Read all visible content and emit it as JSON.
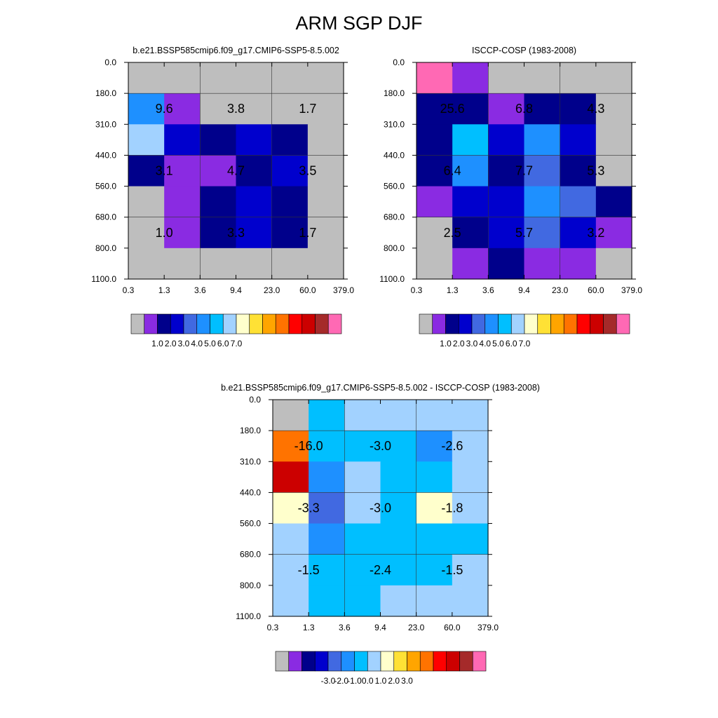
{
  "title": "ARM SGP DJF",
  "colors": {
    "gray": "#BEBEBE",
    "violet": "#8A2BE2",
    "navy": "#00008B",
    "mediumblue": "#0000CD",
    "royalblue": "#4169E1",
    "dodgerblue": "#1E90FF",
    "deepskyblue": "#00BFFF",
    "lightskyblue": "#A2D2FF",
    "lightyellow": "#FFFFCC",
    "gold": "#FFE135",
    "orange": "#FFA500",
    "darkorange": "#FF7300",
    "red": "#FF0000",
    "darkred": "#CC0000",
    "brown": "#A52A2A",
    "pink": "#FF69B4"
  },
  "chart_data": [
    {
      "type": "heatmap",
      "title": "b.e21.BSSP585cmip6.f09_g17.CMIP6-SSP5-8.5.002",
      "x_ticks": [
        "0.3",
        "1.3",
        "3.6",
        "9.4",
        "23.0",
        "60.0",
        "379.0"
      ],
      "y_ticks": [
        "0.0",
        "180.0",
        "310.0",
        "440.0",
        "560.0",
        "680.0",
        "800.0",
        "1100.0"
      ],
      "cells": [
        [
          "gray",
          "gray",
          "gray",
          "gray",
          "gray",
          "gray"
        ],
        [
          "dodgerblue",
          "violet",
          "gray",
          "gray",
          "gray",
          "gray"
        ],
        [
          "lightskyblue",
          "mediumblue",
          "navy",
          "mediumblue",
          "navy",
          "gray"
        ],
        [
          "navy",
          "violet",
          "violet",
          "navy",
          "mediumblue",
          "gray"
        ],
        [
          "gray",
          "violet",
          "navy",
          "mediumblue",
          "navy",
          "gray"
        ],
        [
          "gray",
          "violet",
          "navy",
          "mediumblue",
          "navy",
          "gray"
        ],
        [
          "gray",
          "gray",
          "gray",
          "gray",
          "gray",
          "gray"
        ]
      ],
      "summary_values": [
        [
          "9.6",
          "3.8",
          "1.7"
        ],
        [
          "3.1",
          "4.7",
          "3.5"
        ],
        [
          "1.0",
          "3.3",
          "1.7"
        ]
      ],
      "colorbar": {
        "colors": [
          "gray",
          "violet",
          "navy",
          "mediumblue",
          "royalblue",
          "dodgerblue",
          "deepskyblue",
          "lightskyblue",
          "lightyellow",
          "gold",
          "orange",
          "darkorange",
          "red",
          "darkred",
          "brown",
          "pink"
        ],
        "labels": [
          "1.0",
          "2.0",
          "3.0",
          "4.0",
          "5.0",
          "6.0",
          "7.0"
        ],
        "label_start": 1
      }
    },
    {
      "type": "heatmap",
      "title": "ISCCP-COSP (1983-2008)",
      "x_ticks": [
        "0.3",
        "1.3",
        "3.6",
        "9.4",
        "23.0",
        "60.0",
        "379.0"
      ],
      "y_ticks": [
        "0.0",
        "180.0",
        "310.0",
        "440.0",
        "560.0",
        "680.0",
        "800.0",
        "1100.0"
      ],
      "cells": [
        [
          "pink",
          "violet",
          "gray",
          "gray",
          "gray",
          "gray"
        ],
        [
          "navy",
          "navy",
          "violet",
          "navy",
          "navy",
          "gray"
        ],
        [
          "navy",
          "deepskyblue",
          "mediumblue",
          "dodgerblue",
          "mediumblue",
          "gray"
        ],
        [
          "navy",
          "dodgerblue",
          "navy",
          "royalblue",
          "navy",
          "gray"
        ],
        [
          "violet",
          "mediumblue",
          "mediumblue",
          "dodgerblue",
          "royalblue",
          "navy"
        ],
        [
          "gray",
          "navy",
          "mediumblue",
          "royalblue",
          "mediumblue",
          "violet"
        ],
        [
          "gray",
          "violet",
          "navy",
          "violet",
          "violet",
          "gray"
        ]
      ],
      "summary_values": [
        [
          "25.6",
          "6.8",
          "4.3"
        ],
        [
          "6.4",
          "7.7",
          "5.3"
        ],
        [
          "2.5",
          "5.7",
          "3.2"
        ]
      ],
      "colorbar": {
        "colors": [
          "gray",
          "violet",
          "navy",
          "mediumblue",
          "royalblue",
          "dodgerblue",
          "deepskyblue",
          "lightskyblue",
          "lightyellow",
          "gold",
          "orange",
          "darkorange",
          "red",
          "darkred",
          "brown",
          "pink"
        ],
        "labels": [
          "1.0",
          "2.0",
          "3.0",
          "4.0",
          "5.0",
          "6.0",
          "7.0"
        ],
        "label_start": 1
      }
    },
    {
      "type": "heatmap",
      "title": "b.e21.BSSP585cmip6.f09_g17.CMIP6-SSP5-8.5.002 - ISCCP-COSP (1983-2008)",
      "x_ticks": [
        "0.3",
        "1.3",
        "3.6",
        "9.4",
        "23.0",
        "60.0",
        "379.0"
      ],
      "y_ticks": [
        "0.0",
        "180.0",
        "310.0",
        "440.0",
        "560.0",
        "680.0",
        "800.0",
        "1100.0"
      ],
      "cells": [
        [
          "gray",
          "deepskyblue",
          "lightskyblue",
          "lightskyblue",
          "lightskyblue",
          "lightskyblue"
        ],
        [
          "darkorange",
          "deepskyblue",
          "deepskyblue",
          "deepskyblue",
          "dodgerblue",
          "lightskyblue"
        ],
        [
          "darkred",
          "dodgerblue",
          "lightskyblue",
          "deepskyblue",
          "deepskyblue",
          "lightskyblue"
        ],
        [
          "lightyellow",
          "royalblue",
          "lightskyblue",
          "deepskyblue",
          "lightyellow",
          "lightskyblue"
        ],
        [
          "lightskyblue",
          "dodgerblue",
          "deepskyblue",
          "deepskyblue",
          "deepskyblue",
          "deepskyblue"
        ],
        [
          "lightskyblue",
          "deepskyblue",
          "deepskyblue",
          "deepskyblue",
          "deepskyblue",
          "lightskyblue"
        ],
        [
          "lightskyblue",
          "deepskyblue",
          "deepskyblue",
          "lightskyblue",
          "lightskyblue",
          "lightskyblue"
        ]
      ],
      "summary_values": [
        [
          "-16.0",
          "-3.0",
          "-2.6"
        ],
        [
          "-3.3",
          "-3.0",
          "-1.8"
        ],
        [
          "-1.5",
          "-2.4",
          "-1.5"
        ]
      ],
      "colorbar": {
        "colors": [
          "gray",
          "violet",
          "navy",
          "mediumblue",
          "royalblue",
          "dodgerblue",
          "deepskyblue",
          "lightskyblue",
          "lightyellow",
          "gold",
          "orange",
          "darkorange",
          "red",
          "darkred",
          "brown",
          "pink"
        ],
        "labels": [
          "-3.0",
          "-2.0",
          "-1.0",
          "0.0",
          "1.0",
          "2.0",
          "3.0"
        ],
        "label_start": 3
      }
    }
  ]
}
